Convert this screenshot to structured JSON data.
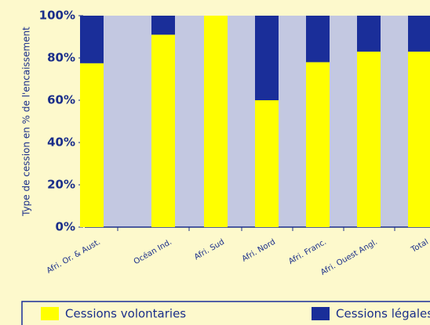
{
  "chart_data": {
    "type": "stacked_bar",
    "y_label": "Type de cession en % de l'encaissement",
    "categories": [
      "Afri. Or. & Aust.",
      "Océan Ind.",
      "Afri. Sud",
      "Afri. Nord",
      "Afri. Franc.",
      "Afri. Ouest Angl.",
      "Total"
    ],
    "series": [
      {
        "name": "Cessions volontaries",
        "color": "#ffff00",
        "values": [
          77.5,
          91,
          100,
          60,
          78,
          83,
          83
        ]
      },
      {
        "name": "Cessions légales",
        "color": "#1a2e99",
        "values": [
          22.5,
          9,
          0,
          40,
          22,
          17,
          17
        ]
      }
    ],
    "ylim": [
      0,
      100
    ],
    "yticks": [
      {
        "value": 0,
        "label": "0%"
      },
      {
        "value": 20,
        "label": "20%"
      },
      {
        "value": 40,
        "label": "40%"
      },
      {
        "value": 60,
        "label": "60%"
      },
      {
        "value": 80,
        "label": "80%"
      },
      {
        "value": 100,
        "label": "100%"
      }
    ],
    "legend": "bottom"
  }
}
